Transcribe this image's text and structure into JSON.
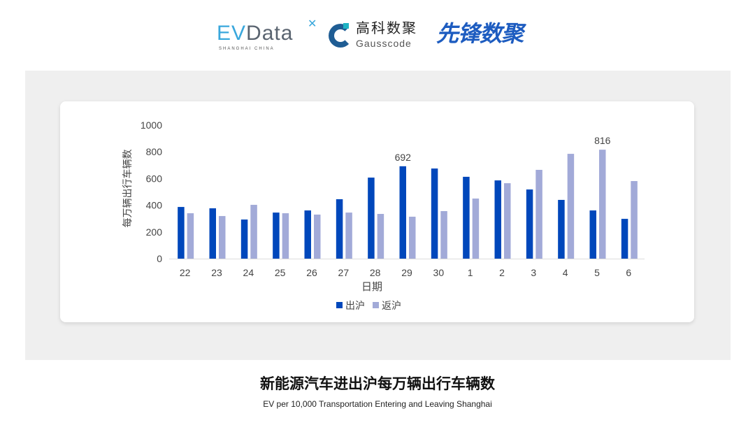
{
  "logos": {
    "evdata": {
      "ev": "EV",
      "rest": "Data",
      "sub": "SHANGHAI CHINA"
    },
    "gausscode": {
      "cn": "高科数聚",
      "en": "Gausscode"
    },
    "xianfeng": "先锋数聚"
  },
  "chart_data": {
    "type": "bar",
    "title": "",
    "xlabel": "日期",
    "ylabel": "每万辆出行车辆数",
    "ylim": [
      0,
      1000
    ],
    "yticks": [
      0,
      200,
      400,
      600,
      800,
      1000
    ],
    "categories": [
      "22",
      "23",
      "24",
      "25",
      "26",
      "27",
      "28",
      "29",
      "30",
      "1",
      "2",
      "3",
      "4",
      "5",
      "6"
    ],
    "series": [
      {
        "name": "出沪",
        "color": "#0047bb",
        "values": [
          387,
          377,
          293,
          345,
          361,
          445,
          607,
          692,
          675,
          613,
          586,
          518,
          440,
          361,
          298
        ]
      },
      {
        "name": "返沪",
        "color": "#a2aad8",
        "values": [
          340,
          319,
          403,
          340,
          330,
          345,
          335,
          314,
          356,
          450,
          565,
          665,
          785,
          816,
          581
        ]
      }
    ],
    "data_labels": [
      {
        "series": 0,
        "category": "29",
        "text": "692"
      },
      {
        "series": 1,
        "category": "5",
        "text": "816"
      }
    ],
    "grid": false,
    "legend": "bottom"
  },
  "footer": {
    "title": "新能源汽车进出沪每万辆出行车辆数",
    "subtitle": "EV per 10,000 Transportation Entering and Leaving Shanghai"
  }
}
